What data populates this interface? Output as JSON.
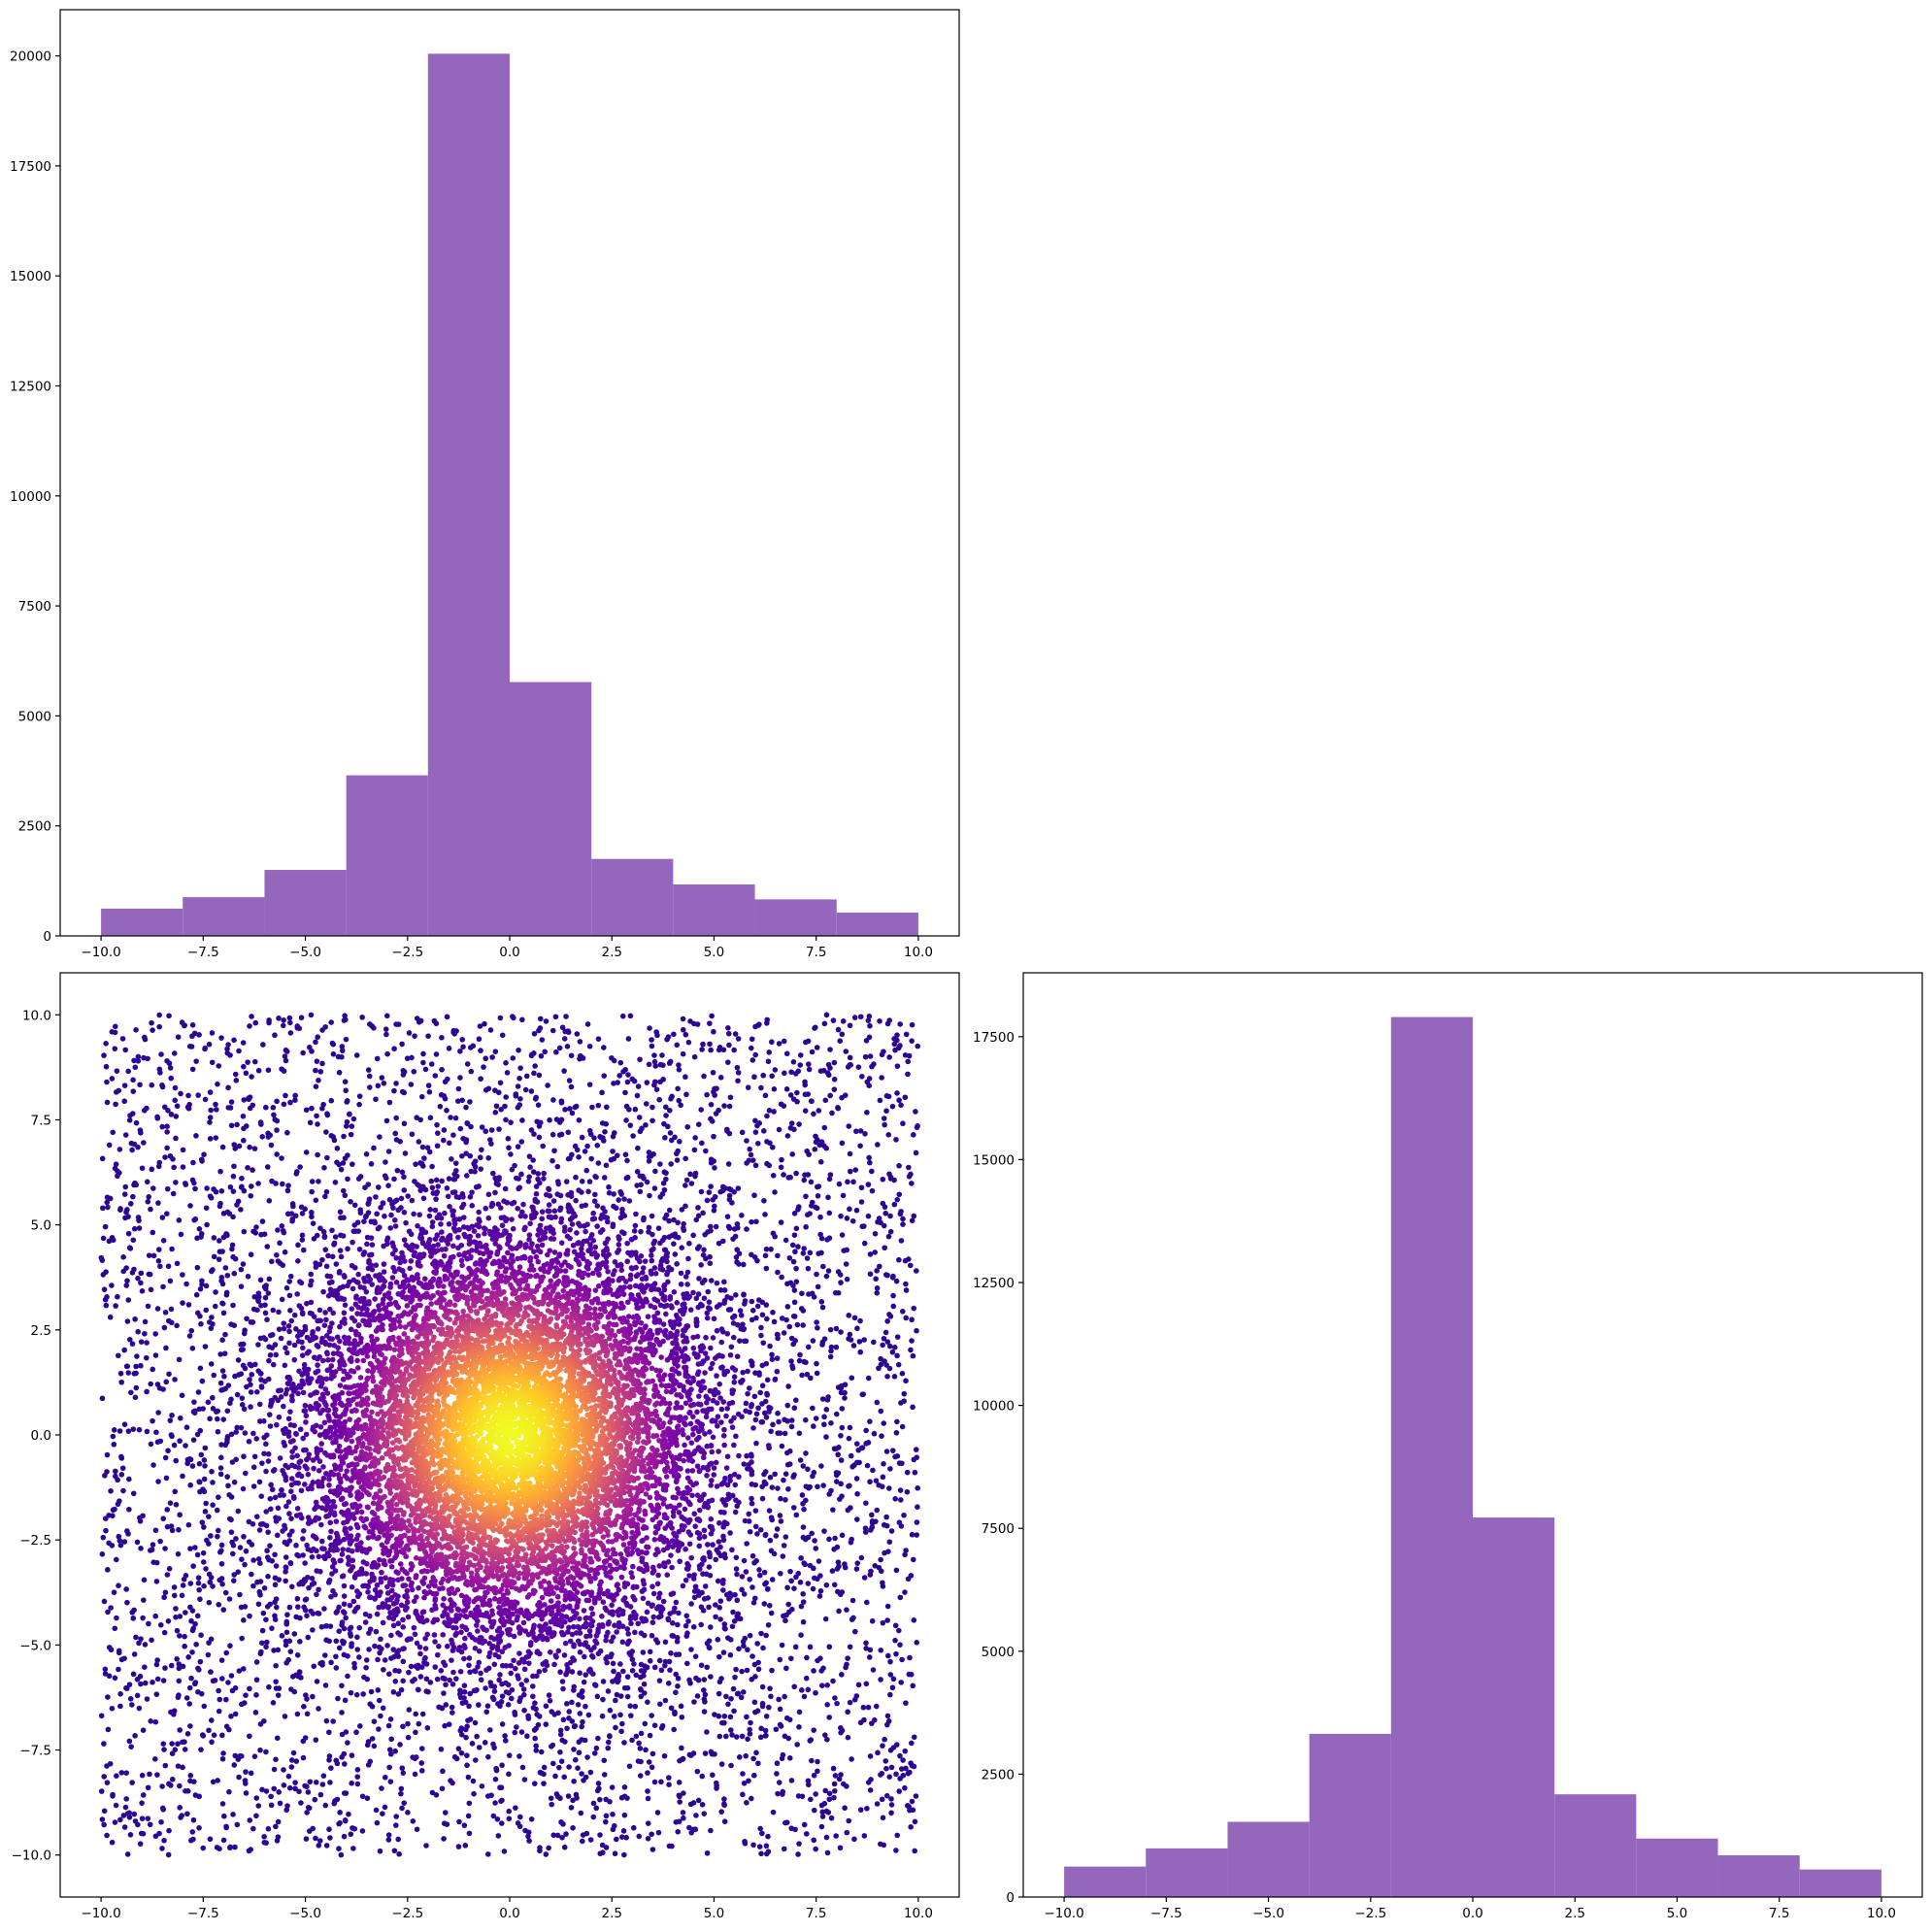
{
  "chart_data": [
    {
      "panel": "top-left",
      "type": "bar",
      "histogram": true,
      "bin_edges": [
        -10,
        -8,
        -6,
        -4,
        -2,
        0,
        2,
        4,
        6,
        8,
        10
      ],
      "values": [
        620,
        880,
        1500,
        3650,
        20050,
        5770,
        1750,
        1170,
        830,
        530
      ],
      "color": "#9467bd",
      "xlim": [
        -11,
        11
      ],
      "ylim": [
        0,
        21050
      ],
      "xticks": [
        -10,
        -7.5,
        -5,
        -2.5,
        0,
        2.5,
        5,
        7.5,
        10
      ],
      "xtick_labels": [
        "−10.0",
        "−7.5",
        "−5.0",
        "−2.5",
        "0.0",
        "2.5",
        "5.0",
        "7.5",
        "10.0"
      ],
      "yticks": [
        0,
        2500,
        5000,
        7500,
        10000,
        12500,
        15000,
        17500,
        20000
      ],
      "ytick_labels": [
        "0",
        "2500",
        "5000",
        "7500",
        "10000",
        "12500",
        "15000",
        "17500",
        "20000"
      ],
      "grid": false
    },
    {
      "panel": "bottom-left",
      "type": "scatter",
      "n_points": 14000,
      "x_range": [
        -10,
        10
      ],
      "y_range": [
        -10,
        10
      ],
      "concentration": "points denser near (0, 0), uniform background elsewhere",
      "colormap": "plasma",
      "color_encoding": "point density, highest at center",
      "color_stops": [
        "#0d0887",
        "#46039f",
        "#7201a8",
        "#9c179e",
        "#bd3786",
        "#d8576b",
        "#ed7953",
        "#fb9f3a",
        "#fdca26",
        "#f0f921"
      ],
      "xlim": [
        -11,
        11
      ],
      "ylim": [
        -11,
        11
      ],
      "xticks": [
        -10,
        -7.5,
        -5,
        -2.5,
        0,
        2.5,
        5,
        7.5,
        10
      ],
      "xtick_labels": [
        "−10.0",
        "−7.5",
        "−5.0",
        "−2.5",
        "0.0",
        "2.5",
        "5.0",
        "7.5",
        "10.0"
      ],
      "yticks": [
        -10,
        -7.5,
        -5,
        -2.5,
        0,
        2.5,
        5,
        7.5,
        10
      ],
      "ytick_labels": [
        "−10.0",
        "−7.5",
        "−5.0",
        "−2.5",
        "0.0",
        "2.5",
        "5.0",
        "7.5",
        "10.0"
      ],
      "grid": false
    },
    {
      "panel": "bottom-right",
      "type": "bar",
      "histogram": true,
      "bin_edges": [
        -10,
        -8,
        -6,
        -4,
        -2,
        0,
        2,
        4,
        6,
        8,
        10
      ],
      "values": [
        620,
        990,
        1530,
        3320,
        17900,
        7720,
        2090,
        1190,
        850,
        560
      ],
      "color": "#9467bd",
      "xlim": [
        -11,
        11
      ],
      "ylim": [
        0,
        18800
      ],
      "xticks": [
        -10,
        -7.5,
        -5,
        -2.5,
        0,
        2.5,
        5,
        7.5,
        10
      ],
      "xtick_labels": [
        "−10.0",
        "−7.5",
        "−5.0",
        "−2.5",
        "0.0",
        "2.5",
        "5.0",
        "7.5",
        "10.0"
      ],
      "yticks": [
        0,
        2500,
        5000,
        7500,
        10000,
        12500,
        15000,
        17500
      ],
      "ytick_labels": [
        "0",
        "2500",
        "5000",
        "7500",
        "10000",
        "12500",
        "15000",
        "17500"
      ],
      "grid": false
    }
  ]
}
